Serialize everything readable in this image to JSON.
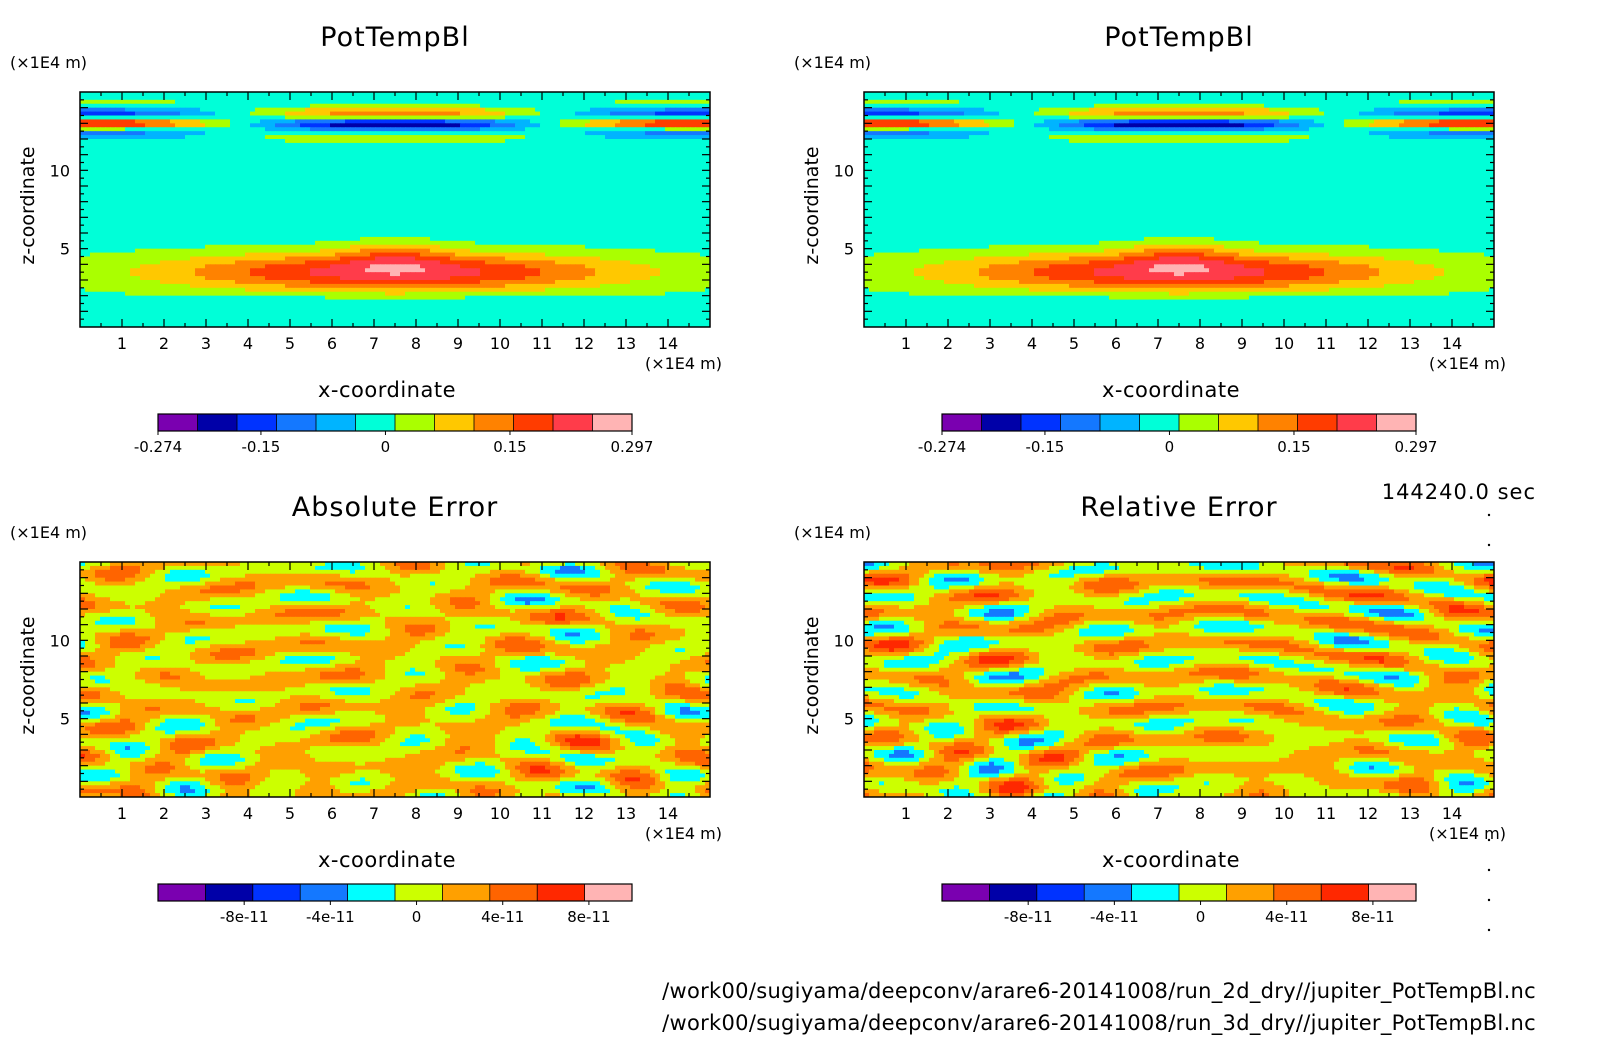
{
  "time_label": "144240.0 sec",
  "file_paths": [
    "/work00/sugiyama/deepconv/arare6-20141008/run_2d_dry//jupiter_PotTempBl.nc",
    "/work00/sugiyama/deepconv/arare6-20141008/run_3d_dry//jupiter_PotTempBl.nc"
  ],
  "chart_data": [
    {
      "type": "heatmap",
      "title": "PotTempBl",
      "xlabel": "x-coordinate",
      "ylabel": "z-coordinate",
      "x_unit": "(×1E4 m)",
      "y_unit": "(×1E4 m)",
      "xlim": [
        0,
        15
      ],
      "ylim": [
        0,
        15
      ],
      "x_ticks": [
        1,
        2,
        3,
        4,
        5,
        6,
        7,
        8,
        9,
        10,
        11,
        12,
        13,
        14
      ],
      "y_ticks": [
        5,
        10
      ],
      "colorbar": {
        "levels": [
          -0.274,
          -0.2217,
          -0.1698,
          -0.1178,
          -0.0659,
          -0.0139,
          0.038,
          0.09,
          0.1419,
          0.1938,
          0.2458,
          0.297
        ],
        "colors": [
          "#7a00b0",
          "#0000a8",
          "#0033ff",
          "#1478ff",
          "#00b4ff",
          "#00ffd8",
          "#aaff00",
          "#ffc800",
          "#ff8200",
          "#ff3c00",
          "#ff3c4a",
          "#ffb4b4"
        ],
        "tick_labels": [
          "-0.274",
          "-0.15",
          "0",
          "0.15",
          "0.297"
        ],
        "tick_values": [
          -0.274,
          -0.15,
          0,
          0.15,
          0.297
        ]
      },
      "grid": false
    },
    {
      "type": "heatmap",
      "title": "PotTempBl",
      "xlabel": "x-coordinate",
      "ylabel": "z-coordinate",
      "x_unit": "(×1E4 m)",
      "y_unit": "(×1E4 m)",
      "xlim": [
        0,
        15
      ],
      "ylim": [
        0,
        15
      ],
      "x_ticks": [
        1,
        2,
        3,
        4,
        5,
        6,
        7,
        8,
        9,
        10,
        11,
        12,
        13,
        14
      ],
      "y_ticks": [
        5,
        10
      ],
      "colorbar": {
        "levels": [
          -0.274,
          -0.2217,
          -0.1698,
          -0.1178,
          -0.0659,
          -0.0139,
          0.038,
          0.09,
          0.1419,
          0.1938,
          0.2458,
          0.297
        ],
        "colors": [
          "#7a00b0",
          "#0000a8",
          "#0033ff",
          "#1478ff",
          "#00b4ff",
          "#00ffd8",
          "#aaff00",
          "#ffc800",
          "#ff8200",
          "#ff3c00",
          "#ff3c4a",
          "#ffb4b4"
        ],
        "tick_labels": [
          "-0.274",
          "-0.15",
          "0",
          "0.15",
          "0.297"
        ],
        "tick_values": [
          -0.274,
          -0.15,
          0,
          0.15,
          0.297
        ]
      },
      "grid": false
    },
    {
      "type": "heatmap",
      "title": "Absolute Error",
      "xlabel": "x-coordinate",
      "ylabel": "z-coordinate",
      "x_unit": "(×1E4 m)",
      "y_unit": "(×1E4 m)",
      "xlim": [
        0,
        15
      ],
      "ylim": [
        0,
        15
      ],
      "x_ticks": [
        1,
        2,
        3,
        4,
        5,
        6,
        7,
        8,
        9,
        10,
        11,
        12,
        13,
        14
      ],
      "y_ticks": [
        5,
        10
      ],
      "colorbar": {
        "levels": [
          -1.2e-10,
          -1e-10,
          -8e-11,
          -6e-11,
          -4e-11,
          -2e-11,
          0,
          2e-11,
          4e-11,
          6e-11,
          8e-11,
          1e-10
        ],
        "colors": [
          "#7a00b0",
          "#0000a8",
          "#0033ff",
          "#1478ff",
          "#00ffff",
          "#ccff00",
          "#ffa000",
          "#ff6400",
          "#ff2800",
          "#ffb4b4"
        ],
        "tick_labels": [
          "-8e-11",
          "-4e-11",
          "0",
          "4e-11",
          "8e-11"
        ],
        "tick_values": [
          -8e-11,
          -4e-11,
          0,
          4e-11,
          8e-11
        ]
      },
      "grid": false
    },
    {
      "type": "heatmap",
      "title": "Relative Error",
      "xlabel": "x-coordinate",
      "ylabel": "z-coordinate",
      "x_unit": "(×1E4 m)",
      "y_unit": "(×1E4 m)",
      "xlim": [
        0,
        15
      ],
      "ylim": [
        0,
        15
      ],
      "x_ticks": [
        1,
        2,
        3,
        4,
        5,
        6,
        7,
        8,
        9,
        10,
        11,
        12,
        13,
        14
      ],
      "y_ticks": [
        5,
        10
      ],
      "colorbar": {
        "levels": [
          -1.2e-10,
          -1e-10,
          -8e-11,
          -6e-11,
          -4e-11,
          -2e-11,
          0,
          2e-11,
          4e-11,
          6e-11,
          8e-11,
          1e-10
        ],
        "colors": [
          "#7a00b0",
          "#0000a8",
          "#0033ff",
          "#1478ff",
          "#00ffff",
          "#ccff00",
          "#ffa000",
          "#ff6400",
          "#ff2800",
          "#ffb4b4"
        ],
        "tick_labels": [
          "-8e-11",
          "-4e-11",
          "0",
          "4e-11",
          "8e-11"
        ],
        "tick_values": [
          -8e-11,
          -4e-11,
          0,
          4e-11,
          8e-11
        ]
      },
      "grid": false
    }
  ]
}
